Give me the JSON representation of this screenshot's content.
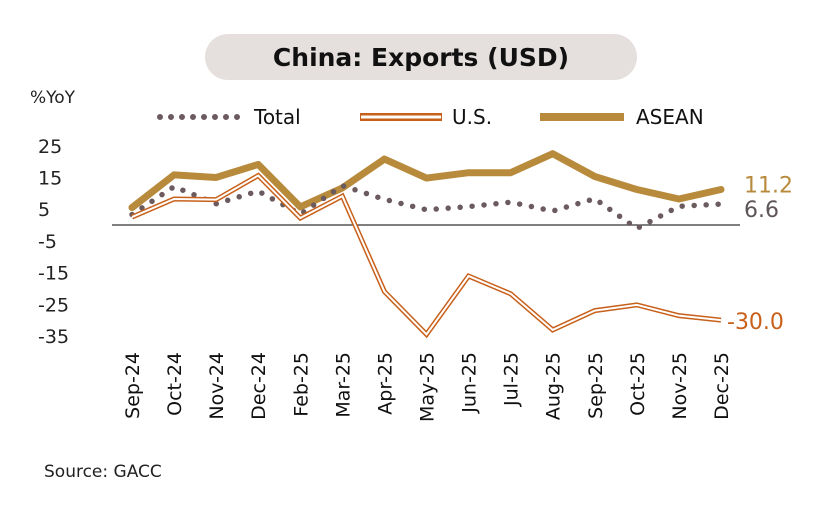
{
  "chart_data": {
    "type": "line",
    "title": "China: Exports (USD)",
    "ylabel": "%YoY",
    "ylim": [
      -35,
      25
    ],
    "yticks": [
      25,
      15,
      5,
      -5,
      -15,
      -25,
      -35
    ],
    "categories": [
      "Sep-24",
      "Oct-24",
      "Nov-24",
      "Dec-24",
      "Feb-25",
      "Mar-25",
      "Apr-25",
      "May-25",
      "Jun-25",
      "Jul-25",
      "Aug-25",
      "Sep-25",
      "Oct-25",
      "Nov-25",
      "Dec-25"
    ],
    "series": [
      {
        "name": "Total",
        "style": "dotted",
        "color": "#6b5a5e",
        "values": [
          3.3,
          12.1,
          6.7,
          10.7,
          3.4,
          12.4,
          8.1,
          4.8,
          5.8,
          7.2,
          4.4,
          8.3,
          -1.1,
          5.9,
          6.6
        ],
        "end_label": "6.6"
      },
      {
        "name": "U.S.",
        "style": "double",
        "color": "#c8601a",
        "values": [
          2.5,
          8.2,
          8.0,
          15.6,
          2.2,
          9.1,
          -21.0,
          -34.5,
          -16.1,
          -21.7,
          -33.1,
          -27.0,
          -25.2,
          -28.6,
          -30.0
        ],
        "end_label": "-30.0"
      },
      {
        "name": "ASEAN",
        "style": "thick",
        "color": "#b88a3c",
        "values": [
          5.5,
          15.8,
          15.0,
          19.1,
          5.7,
          11.7,
          20.8,
          14.8,
          16.5,
          16.5,
          22.5,
          15.3,
          11.2,
          8.2,
          11.2
        ],
        "end_label": "11.2"
      }
    ],
    "zero_line": true,
    "grid": false,
    "legend_position": "top"
  },
  "source": "Source: GACC"
}
